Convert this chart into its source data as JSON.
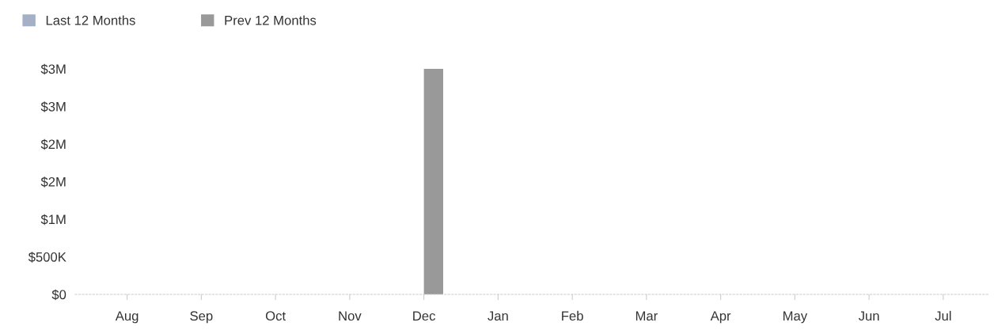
{
  "chart_data": {
    "type": "bar",
    "categories": [
      "Aug",
      "Sep",
      "Oct",
      "Nov",
      "Dec",
      "Jan",
      "Feb",
      "Mar",
      "Apr",
      "May",
      "Jun",
      "Jul"
    ],
    "series": [
      {
        "name": "Last 12 Months",
        "color": "#a3b0c5",
        "values": [
          0,
          0,
          0,
          0,
          0,
          0,
          0,
          0,
          0,
          0,
          0,
          0
        ]
      },
      {
        "name": "Prev 12 Months",
        "color": "#999999",
        "values": [
          0,
          0,
          0,
          0,
          3000000,
          0,
          0,
          0,
          0,
          0,
          0,
          0
        ]
      }
    ],
    "ylim": [
      0,
      3000000
    ],
    "yticks": [
      {
        "value": 0,
        "label": "$0"
      },
      {
        "value": 500000,
        "label": "$500K"
      },
      {
        "value": 1000000,
        "label": "$1M"
      },
      {
        "value": 1500000,
        "label": "$2M"
      },
      {
        "value": 2000000,
        "label": "$2M"
      },
      {
        "value": 2500000,
        "label": "$3M"
      },
      {
        "value": 3000000,
        "label": "$3M"
      }
    ],
    "grid": false,
    "legend": "top left"
  }
}
